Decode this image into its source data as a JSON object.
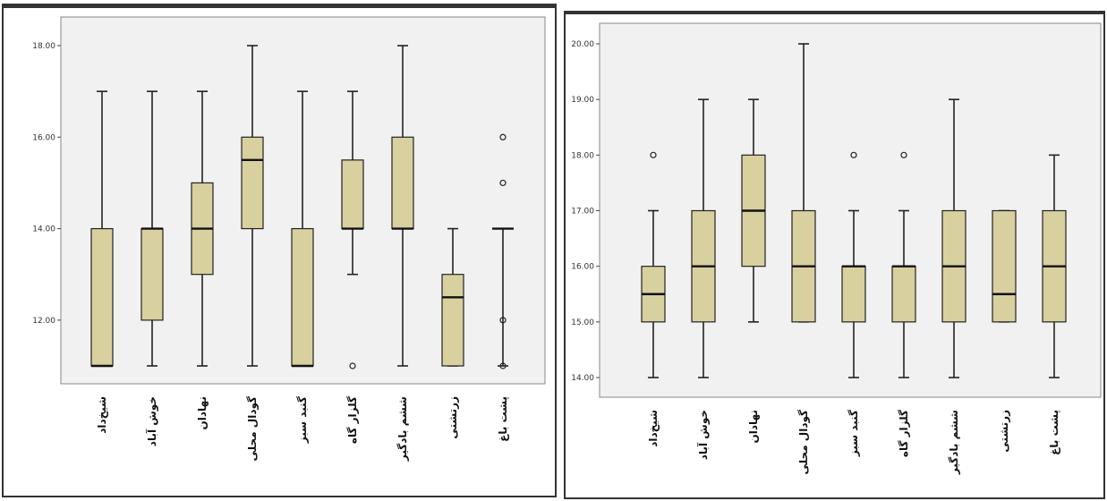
{
  "chart_data": [
    {
      "type": "box",
      "title": "",
      "xlabel": "",
      "ylabel": "",
      "ylim": [
        11,
        18
      ],
      "yticks": [
        "12.00",
        "14.00",
        "16.00",
        "18.00"
      ],
      "categories": [
        "شیخ‌داد",
        "خوش آباد",
        "نهادان",
        "گودال محلی",
        "گنبد سبز",
        "گلزار گاه",
        "ششم بادگیر",
        "زرتشتی",
        "پشت باغ"
      ],
      "boxes": [
        {
          "min": 11,
          "q1": 11,
          "median": 11,
          "q3": 14,
          "max": 17,
          "outliers": []
        },
        {
          "min": 11,
          "q1": 12,
          "median": 14,
          "q3": 14,
          "max": 17,
          "outliers": []
        },
        {
          "min": 11,
          "q1": 13,
          "median": 14,
          "q3": 15,
          "max": 17,
          "outliers": []
        },
        {
          "min": 11,
          "q1": 14,
          "median": 15.5,
          "q3": 16,
          "max": 18,
          "outliers": []
        },
        {
          "min": 11,
          "q1": 11,
          "median": 11,
          "q3": 14,
          "max": 17,
          "outliers": []
        },
        {
          "min": 13,
          "q1": 14,
          "median": 14,
          "q3": 15.5,
          "max": 17,
          "outliers": [
            11
          ]
        },
        {
          "min": 11,
          "q1": 14,
          "median": 14,
          "q3": 16,
          "max": 18,
          "outliers": []
        },
        {
          "min": 11,
          "q1": 11,
          "median": 12.5,
          "q3": 13,
          "max": 14,
          "outliers": []
        },
        {
          "min": 11,
          "q1": 14,
          "median": 14,
          "q3": 14,
          "max": 14,
          "outliers": [
            16,
            15,
            12,
            11
          ]
        }
      ],
      "colors": {
        "box": "#d8d09e",
        "stroke": "#222222",
        "plot_bg": "#f1f1f1"
      }
    },
    {
      "type": "box",
      "title": "",
      "xlabel": "",
      "ylabel": "",
      "ylim": [
        14,
        20
      ],
      "yticks": [
        "14.00",
        "15.00",
        "16.00",
        "17.00",
        "18.00",
        "19.00",
        "20.00"
      ],
      "categories": [
        "شیخ‌داد",
        "خوش آباد",
        "نهادان",
        "گودال محلی",
        "گنبد سبز",
        "گلزار گاه",
        "ششم بادگیر",
        "زرتشتی",
        "پشت باغ"
      ],
      "boxes": [
        {
          "min": 14,
          "q1": 15,
          "median": 15.5,
          "q3": 16,
          "max": 17,
          "outliers": [
            18
          ]
        },
        {
          "min": 14,
          "q1": 15,
          "median": 16,
          "q3": 17,
          "max": 19,
          "outliers": []
        },
        {
          "min": 15,
          "q1": 16,
          "median": 17,
          "q3": 18,
          "max": 19,
          "outliers": []
        },
        {
          "min": 15,
          "q1": 15,
          "median": 16,
          "q3": 17,
          "max": 20,
          "outliers": []
        },
        {
          "min": 14,
          "q1": 15,
          "median": 16,
          "q3": 16,
          "max": 17,
          "outliers": [
            18
          ]
        },
        {
          "min": 14,
          "q1": 15,
          "median": 16,
          "q3": 16,
          "max": 17,
          "outliers": [
            18
          ]
        },
        {
          "min": 14,
          "q1": 15,
          "median": 16,
          "q3": 17,
          "max": 19,
          "outliers": []
        },
        {
          "min": 15,
          "q1": 15,
          "median": 15.5,
          "q3": 17,
          "max": 17,
          "outliers": []
        },
        {
          "min": 14,
          "q1": 15,
          "median": 16,
          "q3": 17,
          "max": 18,
          "outliers": []
        }
      ],
      "colors": {
        "box": "#d8d09e",
        "stroke": "#222222",
        "plot_bg": "#f1f1f1"
      }
    }
  ]
}
